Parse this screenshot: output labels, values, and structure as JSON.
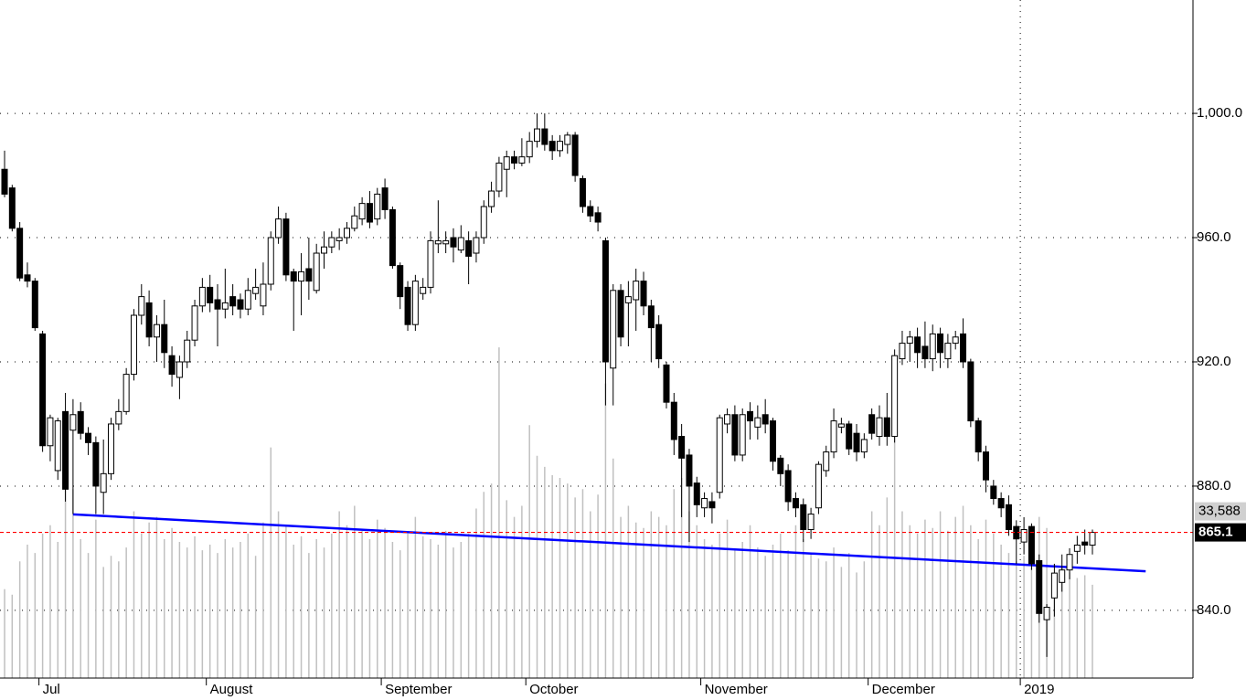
{
  "chart_data": {
    "type": "candlestick",
    "categories": [
      null,
      null,
      null,
      null,
      null,
      "Jul",
      null,
      null,
      null,
      null,
      null,
      null,
      null,
      null,
      null,
      null,
      null,
      null,
      null,
      null,
      null,
      null,
      null,
      null,
      null,
      null,
      null,
      "August",
      null,
      null,
      null,
      null,
      null,
      null,
      null,
      null,
      null,
      null,
      null,
      null,
      null,
      null,
      null,
      null,
      null,
      null,
      null,
      null,
      null,
      null,
      "September",
      null,
      null,
      null,
      null,
      null,
      null,
      null,
      null,
      null,
      null,
      null,
      null,
      null,
      null,
      null,
      null,
      null,
      null,
      "October",
      null,
      null,
      null,
      null,
      null,
      null,
      null,
      null,
      null,
      null,
      null,
      null,
      null,
      null,
      null,
      null,
      null,
      null,
      null,
      null,
      null,
      null,
      "November",
      null,
      null,
      null,
      null,
      null,
      null,
      null,
      null,
      null,
      null,
      null,
      null,
      null,
      null,
      null,
      null,
      null,
      null,
      null,
      null,
      null,
      "December",
      null,
      null,
      null,
      null,
      null,
      null,
      null,
      null,
      null,
      null,
      null,
      null,
      null,
      null,
      null,
      null,
      null,
      null,
      null,
      "2019",
      null,
      null,
      null,
      null,
      null,
      null,
      null,
      null,
      null
    ],
    "open": [
      982,
      976,
      963,
      948,
      946,
      929,
      893,
      885,
      904,
      898,
      904,
      897,
      894,
      878,
      884,
      900,
      904,
      916,
      935,
      939,
      928,
      932,
      922,
      915,
      920,
      927,
      938,
      944,
      940,
      937,
      941,
      940,
      937,
      942,
      938,
      945,
      960,
      966,
      949,
      946,
      950,
      943,
      955,
      957,
      959,
      960,
      963,
      966,
      971,
      966,
      976,
      969,
      951,
      944,
      932,
      942,
      944,
      958,
      958,
      960,
      956,
      959,
      955,
      960,
      970,
      975,
      982,
      986,
      984,
      986,
      991,
      995,
      991,
      988,
      990,
      993,
      979,
      970,
      968,
      959,
      918,
      943,
      939,
      940,
      946,
      938,
      932,
      919,
      907,
      896,
      890,
      881,
      873,
      875,
      878,
      900,
      903,
      890,
      904,
      899,
      903,
      901,
      889,
      885,
      876,
      874,
      866,
      873,
      885,
      891,
      899,
      900,
      897,
      891,
      903,
      896,
      902,
      896,
      921,
      926,
      928,
      925,
      921,
      929,
      921,
      926,
      929,
      920,
      901,
      891,
      880,
      876,
      874,
      867,
      862,
      867,
      856,
      837,
      844,
      849,
      853,
      859,
      862,
      861
    ],
    "high": [
      988,
      977,
      965,
      952,
      947,
      930,
      903,
      902,
      910,
      908,
      907,
      899,
      896,
      895,
      902,
      908,
      918,
      937,
      945,
      943,
      935,
      940,
      925,
      922,
      930,
      940,
      947,
      948,
      945,
      950,
      945,
      942,
      947,
      950,
      952,
      962,
      970,
      968,
      950,
      955,
      960,
      958,
      962,
      962,
      963,
      965,
      970,
      973,
      975,
      976,
      979,
      970,
      952,
      946,
      948,
      947,
      962,
      972,
      962,
      963,
      964,
      962,
      962,
      972,
      978,
      986,
      988,
      988,
      992,
      994,
      1000,
      1000,
      993,
      993,
      994,
      994,
      980,
      972,
      970,
      960,
      945,
      945,
      946,
      950,
      949,
      940,
      935,
      920,
      910,
      900,
      892,
      883,
      878,
      878,
      903,
      905,
      906,
      905,
      907,
      906,
      908,
      902,
      890,
      887,
      878,
      876,
      873,
      888,
      893,
      905,
      902,
      901,
      900,
      897,
      905,
      906,
      910,
      924,
      930,
      930,
      931,
      933,
      932,
      931,
      929,
      930,
      934,
      921,
      902,
      893,
      882,
      878,
      877,
      869,
      870,
      868,
      858,
      842,
      855,
      858,
      860,
      864,
      866,
      866
    ],
    "low": [
      973,
      962,
      946,
      944,
      930,
      891,
      888,
      882,
      875,
      871,
      895,
      890,
      871,
      871,
      882,
      898,
      903,
      914,
      932,
      925,
      920,
      918,
      912,
      908,
      918,
      925,
      936,
      936,
      925,
      934,
      935,
      934,
      935,
      940,
      935,
      943,
      958,
      946,
      930,
      935,
      940,
      942,
      950,
      955,
      956,
      958,
      962,
      964,
      963,
      964,
      966,
      950,
      937,
      930,
      930,
      940,
      942,
      955,
      955,
      952,
      955,
      945,
      952,
      958,
      968,
      973,
      973,
      982,
      983,
      984,
      989,
      988,
      985,
      986,
      987,
      978,
      968,
      965,
      962,
      906,
      906,
      925,
      925,
      930,
      935,
      920,
      918,
      905,
      890,
      870,
      862,
      870,
      870,
      868,
      876,
      897,
      888,
      888,
      895,
      895,
      897,
      885,
      880,
      872,
      870,
      862,
      863,
      871,
      883,
      889,
      897,
      890,
      888,
      889,
      895,
      893,
      893,
      894,
      919,
      920,
      918,
      918,
      917,
      918,
      918,
      924,
      918,
      899,
      888,
      878,
      874,
      870,
      864,
      855,
      858,
      853,
      836,
      825,
      838,
      846,
      850,
      855,
      858,
      858
    ],
    "close": [
      974,
      963,
      947,
      946,
      931,
      893,
      902,
      901,
      879,
      903,
      897,
      894,
      880,
      884,
      900,
      904,
      916,
      935,
      941,
      928,
      932,
      923,
      916,
      920,
      927,
      938,
      944,
      939,
      937,
      939,
      938,
      937,
      943,
      944,
      945,
      960,
      966,
      948,
      946,
      949,
      946,
      955,
      957,
      960,
      960,
      963,
      967,
      971,
      965,
      974,
      969,
      951,
      941,
      932,
      946,
      944,
      959,
      959,
      959,
      957,
      960,
      954,
      960,
      970,
      975,
      984,
      986,
      984,
      986,
      991,
      995,
      990,
      988,
      991,
      993,
      980,
      970,
      967,
      965,
      920,
      943,
      928,
      941,
      946,
      938,
      931,
      921,
      907,
      895,
      889,
      880,
      874,
      876,
      873,
      902,
      903,
      890,
      903,
      901,
      902,
      900,
      888,
      884,
      875,
      873,
      866,
      871,
      887,
      891,
      901,
      900,
      892,
      891,
      895,
      897,
      902,
      896,
      922,
      926,
      928,
      923,
      921,
      929,
      923,
      926,
      928,
      920,
      901,
      891,
      882,
      876,
      873,
      866,
      863,
      866,
      855,
      839,
      841,
      852,
      853,
      858,
      861,
      861,
      865.1
    ],
    "volume": [
      32000,
      30000,
      42000,
      48000,
      45000,
      52000,
      55000,
      49000,
      70000,
      68000,
      50000,
      45000,
      57000,
      40000,
      44000,
      42000,
      47000,
      60000,
      52000,
      56000,
      58000,
      50000,
      54000,
      49000,
      47000,
      51000,
      46000,
      48000,
      45000,
      50000,
      47000,
      49000,
      52000,
      44000,
      56000,
      83000,
      60000,
      55000,
      48000,
      51000,
      45000,
      50000,
      47000,
      52000,
      60000,
      55000,
      62000,
      53000,
      50000,
      57000,
      54000,
      49000,
      46000,
      52000,
      58000,
      51000,
      50000,
      48000,
      53000,
      47000,
      49000,
      52000,
      61000,
      67000,
      70000,
      119000,
      64000,
      58000,
      62000,
      91000,
      80000,
      76000,
      73000,
      72000,
      70000,
      65000,
      68000,
      60000,
      66000,
      106000,
      79000,
      58000,
      62000,
      56000,
      54000,
      60000,
      58000,
      55000,
      68000,
      72000,
      60000,
      55000,
      50000,
      48000,
      52000,
      57000,
      46000,
      49000,
      55000,
      47000,
      44000,
      48000,
      52000,
      46000,
      55000,
      50000,
      45000,
      43000,
      42000,
      47000,
      40000,
      45000,
      38000,
      42000,
      60000,
      55000,
      65000,
      102000,
      60000,
      55000,
      52000,
      57000,
      54000,
      60000,
      53000,
      58000,
      62000,
      55000,
      50000,
      57000,
      52000,
      48000,
      45000,
      42000,
      44000,
      40000,
      58000,
      54000,
      35000,
      40000,
      38000,
      36000,
      37000,
      33588
    ],
    "volume_label": {
      "value": 33588,
      "label": "33,588"
    },
    "up_color": "#ffffff",
    "down_color": "#000000",
    "volume_color": "#c0c0c0",
    "ylim": [
      818.2,
      1036.5
    ],
    "yticks": [
      {
        "value": 840,
        "label": "840.0"
      },
      {
        "value": 880,
        "label": "880.0"
      },
      {
        "value": 920,
        "label": "920.0"
      },
      {
        "value": 960,
        "label": "960.0"
      },
      {
        "value": 1000,
        "label": "1,000.0"
      }
    ],
    "y2lim": [
      0,
      244000
    ],
    "grid": true,
    "trendline": {
      "x": [
        9,
        150
      ],
      "y": [
        870.9,
        852.6
      ],
      "color": "#0000ff"
    },
    "last_line_color": "#ff0000"
  }
}
